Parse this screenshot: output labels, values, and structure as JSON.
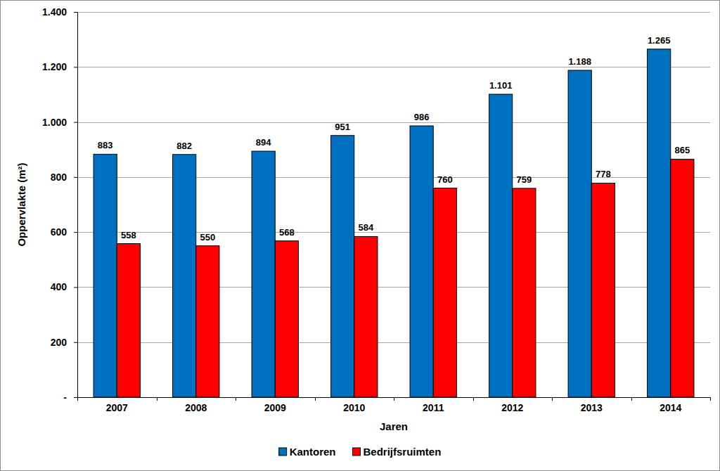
{
  "chart_data": {
    "type": "bar",
    "x_label": "Jaren",
    "y_label": "Oppervlakte (m²)",
    "categories": [
      "2007",
      "2008",
      "2009",
      "2010",
      "2011",
      "2012",
      "2013",
      "2014"
    ],
    "series": [
      {
        "name": "Kantoren",
        "color": "#0070c0",
        "values": [
          883,
          882,
          894,
          951,
          986,
          1101,
          1188,
          1265
        ],
        "value_labels": [
          "883",
          "882",
          "894",
          "951",
          "986",
          "1.101",
          "1.188",
          "1.265"
        ]
      },
      {
        "name": "Bedrijfsruimten",
        "color": "#ff0000",
        "values": [
          558,
          550,
          568,
          584,
          760,
          759,
          778,
          865
        ]
      }
    ],
    "ylim": [
      0,
      1400
    ],
    "yticks": [
      {
        "value": 0,
        "label": "-"
      },
      200,
      400,
      600,
      800,
      {
        "value": 1000,
        "label": "1.000"
      },
      {
        "value": 1200,
        "label": "1.200"
      },
      {
        "value": 1400,
        "label": "1.400"
      }
    ],
    "grid": true,
    "legend": "bottom",
    "data_labels": true
  }
}
